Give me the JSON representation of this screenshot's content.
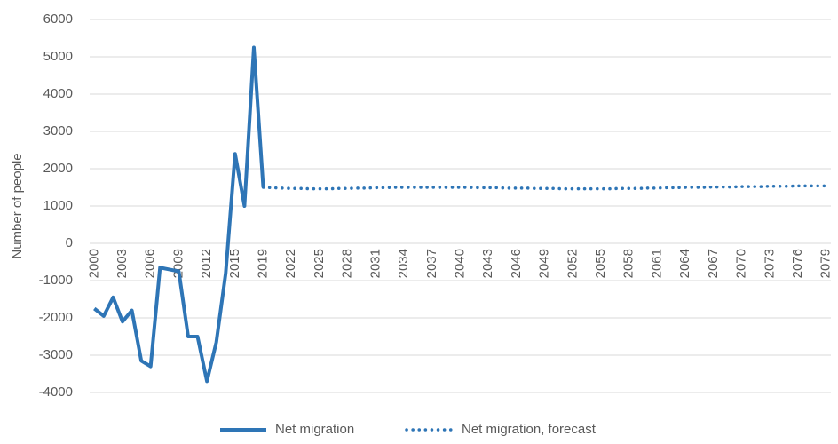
{
  "chart_data": {
    "type": "line",
    "y_label": "Number of people",
    "categories": [
      "2000",
      null,
      null,
      "2003",
      null,
      null,
      "2006",
      null,
      null,
      "2009",
      null,
      null,
      "2012",
      null,
      null,
      "2015",
      null,
      null,
      "2019",
      null,
      null,
      "2022",
      null,
      null,
      "2025",
      null,
      null,
      "2028",
      null,
      null,
      "2031",
      null,
      null,
      "2034",
      null,
      null,
      "2037",
      null,
      null,
      "2040",
      null,
      null,
      "2043",
      null,
      null,
      "2046",
      null,
      null,
      "2049",
      null,
      null,
      "2052",
      null,
      null,
      "2055",
      null,
      null,
      "2058",
      null,
      null,
      "2061",
      null,
      null,
      "2064",
      null,
      null,
      "2067",
      null,
      null,
      "2070",
      null,
      null,
      "2073",
      null,
      null,
      "2076",
      null,
      null,
      "2079"
    ],
    "series": [
      {
        "name": "Net migration",
        "color": "#2e75b6",
        "dash": "solid",
        "values": [
          -1750,
          -1950,
          -1450,
          -2100,
          -1800,
          -3150,
          -3300,
          -650,
          -700,
          -750,
          -2500,
          -2500,
          -3700,
          -2650,
          -800,
          2400,
          1000,
          5250,
          1500,
          null,
          null,
          null,
          null,
          null,
          null,
          null,
          null,
          null,
          null,
          null,
          null,
          null,
          null,
          null,
          null,
          null,
          null,
          null,
          null,
          null,
          null,
          null,
          null,
          null,
          null,
          null,
          null,
          null,
          null,
          null,
          null,
          null,
          null,
          null,
          null,
          null,
          null,
          null,
          null,
          null,
          null,
          null,
          null,
          null,
          null,
          null,
          null,
          null,
          null,
          null,
          null,
          null,
          null,
          null,
          null,
          null,
          null,
          null,
          null
        ]
      },
      {
        "name": "Net migration, forecast",
        "color": "#2e75b6",
        "dash": "dotted",
        "values": [
          null,
          null,
          null,
          null,
          null,
          null,
          null,
          null,
          null,
          null,
          null,
          null,
          null,
          null,
          null,
          null,
          null,
          null,
          1500,
          1490,
          1480,
          1470,
          1470,
          1460,
          1460,
          1460,
          1470,
          1470,
          1480,
          1480,
          1490,
          1490,
          1500,
          1500,
          1500,
          1500,
          1500,
          1500,
          1500,
          1500,
          1500,
          1490,
          1490,
          1490,
          1480,
          1480,
          1480,
          1470,
          1470,
          1470,
          1460,
          1460,
          1460,
          1460,
          1460,
          1460,
          1470,
          1470,
          1470,
          1480,
          1480,
          1490,
          1490,
          1500,
          1500,
          1500,
          1510,
          1510,
          1510,
          1520,
          1520,
          1520,
          1530,
          1530,
          1530,
          1540,
          1540,
          1540,
          1540
        ]
      }
    ],
    "ylim": [
      -4000,
      6000
    ],
    "yticks": [
      -4000,
      -3000,
      -2000,
      -1000,
      0,
      1000,
      2000,
      3000,
      4000,
      5000,
      6000
    ],
    "grid": true,
    "legend": "bottom"
  }
}
